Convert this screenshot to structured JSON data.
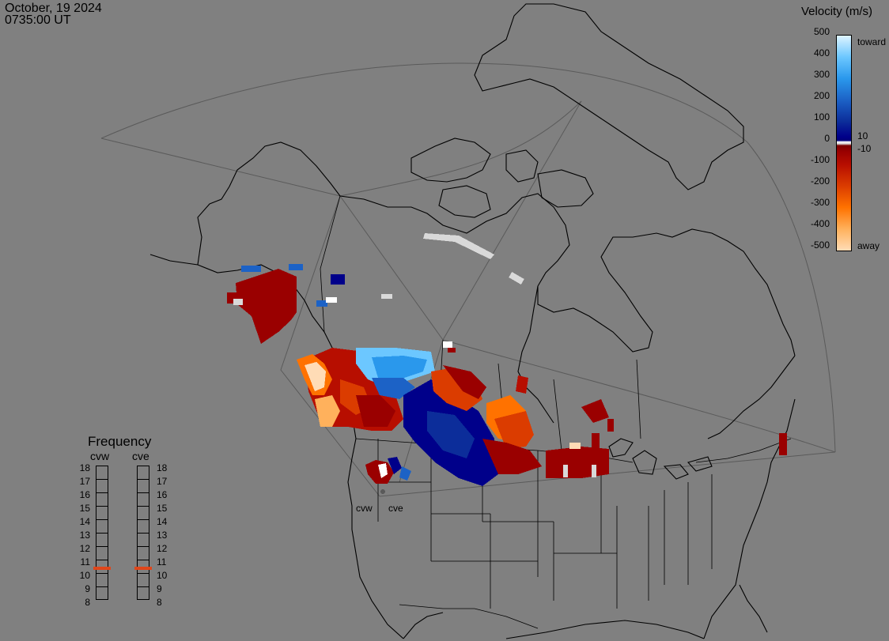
{
  "header": {
    "date": "October, 19 2024",
    "time": "0735:00 UT"
  },
  "colorbar": {
    "title": "Velocity (m/s)",
    "ticks": [
      "500",
      "400",
      "300",
      "200",
      "100",
      "0",
      "-100",
      "-200",
      "-300",
      "-400",
      "-500"
    ],
    "side_labels": [
      "toward",
      "10",
      "-10",
      "away"
    ]
  },
  "frequency_panel": {
    "title": "Frequency",
    "radars": [
      "cvw",
      "cve"
    ],
    "levels": [
      "18",
      "17",
      "16",
      "15",
      "14",
      "13",
      "12",
      "11",
      "10",
      "9",
      "8"
    ],
    "selected_mhz": {
      "cvw": 10.8,
      "cve": 10.8
    },
    "marker_color": "#e0461a"
  },
  "radar_sites": [
    "cvw",
    "cve"
  ],
  "colors": {
    "background": "#808080",
    "land_outline": "#000000",
    "toward_dark": "#00008a",
    "toward_light": "#6cc7ff",
    "away_dark": "#9a0000",
    "away_light": "#ffb15c",
    "ground_scatter": "#d9d9d9"
  }
}
